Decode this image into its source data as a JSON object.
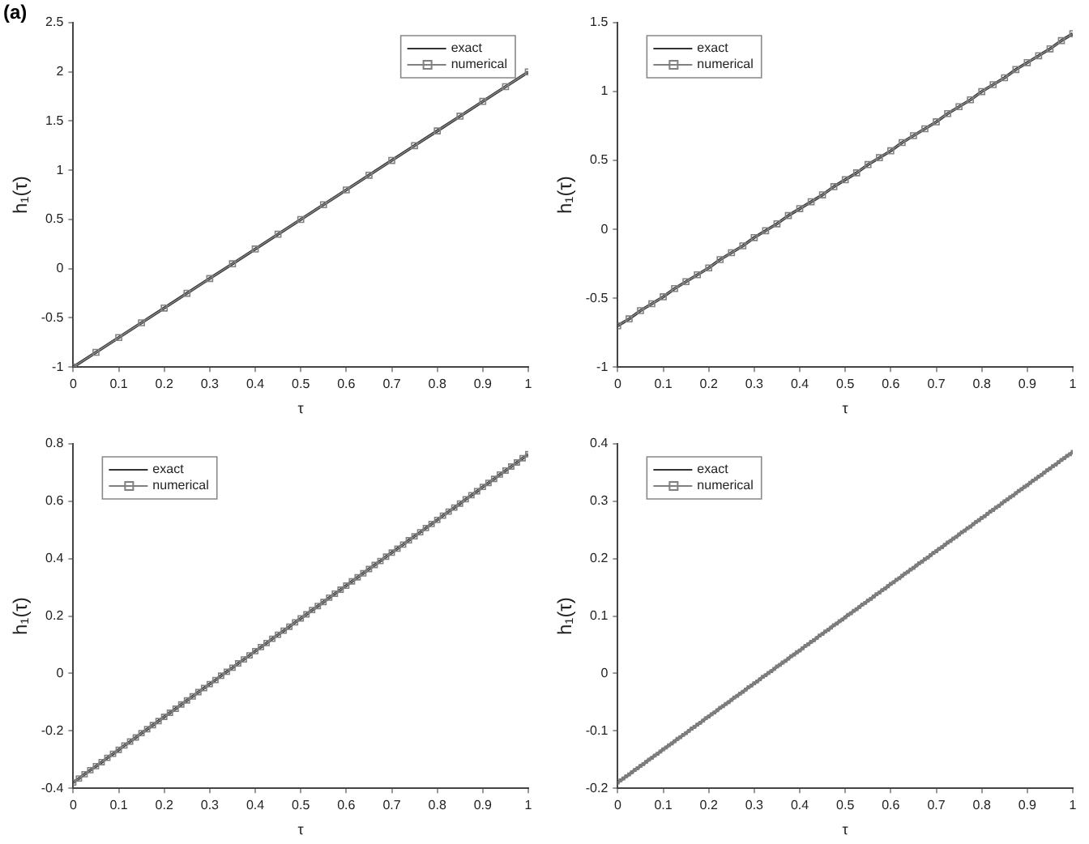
{
  "chart_data": [
    {
      "type": "line",
      "annotations": [
        "(a)"
      ],
      "xlabel": "τ",
      "ylabel": "h₁(τ)",
      "legend": "top right",
      "grid": false,
      "xlim": [
        0,
        1
      ],
      "xticks": [
        0,
        0.1,
        0.2,
        0.3,
        0.4,
        0.5,
        0.6,
        0.7,
        0.8,
        0.9,
        1
      ],
      "ylim": [
        -1,
        2.5
      ],
      "yticks": [
        -1,
        -0.5,
        0,
        0.5,
        1,
        1.5,
        2,
        2.5
      ],
      "x": [
        0,
        0.05,
        0.1,
        0.15,
        0.2,
        0.25,
        0.3,
        0.35,
        0.4,
        0.45,
        0.5,
        0.55,
        0.6,
        0.65,
        0.7,
        0.75,
        0.8,
        0.85,
        0.9,
        0.95,
        1
      ],
      "series": [
        {
          "name": "exact",
          "color": "#333333",
          "marker": "none",
          "values": [
            -1,
            -0.85,
            -0.7,
            -0.55,
            -0.4,
            -0.25,
            -0.1,
            0.05,
            0.2,
            0.35,
            0.5,
            0.65,
            0.8,
            0.95,
            1.1,
            1.25,
            1.4,
            1.55,
            1.7,
            1.85,
            2
          ]
        },
        {
          "name": "numerical",
          "color": "#808080",
          "marker": "square",
          "values": [
            -1,
            -0.85,
            -0.7,
            -0.55,
            -0.4,
            -0.25,
            -0.1,
            0.05,
            0.2,
            0.35,
            0.5,
            0.65,
            0.8,
            0.95,
            1.1,
            1.25,
            1.4,
            1.55,
            1.7,
            1.85,
            2
          ]
        }
      ]
    },
    {
      "type": "line",
      "xlabel": "τ",
      "ylabel": "h₁(τ)",
      "legend": "top left",
      "grid": false,
      "xlim": [
        0,
        1
      ],
      "xticks": [
        0,
        0.1,
        0.2,
        0.3,
        0.4,
        0.5,
        0.6,
        0.7,
        0.8,
        0.9,
        1
      ],
      "ylim": [
        -1,
        1.5
      ],
      "yticks": [
        -1,
        -0.5,
        0,
        0.5,
        1,
        1.5
      ],
      "x": [
        0,
        0.025,
        0.05,
        0.075,
        0.1,
        0.125,
        0.15,
        0.175,
        0.2,
        0.225,
        0.25,
        0.275,
        0.3,
        0.325,
        0.35,
        0.375,
        0.4,
        0.425,
        0.45,
        0.475,
        0.5,
        0.525,
        0.55,
        0.575,
        0.6,
        0.625,
        0.65,
        0.675,
        0.7,
        0.725,
        0.75,
        0.775,
        0.8,
        0.825,
        0.85,
        0.875,
        0.9,
        0.925,
        0.95,
        0.975,
        1
      ],
      "series": [
        {
          "name": "exact",
          "color": "#333333",
          "marker": "none",
          "values": [
            -0.7,
            -0.65,
            -0.59,
            -0.54,
            -0.49,
            -0.43,
            -0.38,
            -0.33,
            -0.28,
            -0.22,
            -0.17,
            -0.12,
            -0.06,
            -0.01,
            0.04,
            0.1,
            0.15,
            0.2,
            0.25,
            0.31,
            0.36,
            0.41,
            0.47,
            0.52,
            0.57,
            0.63,
            0.68,
            0.73,
            0.78,
            0.84,
            0.89,
            0.94,
            1,
            1.05,
            1.1,
            1.16,
            1.21,
            1.26,
            1.31,
            1.37,
            1.42
          ]
        },
        {
          "name": "numerical",
          "color": "#808080",
          "marker": "square",
          "values": [
            -0.7,
            -0.65,
            -0.59,
            -0.54,
            -0.49,
            -0.43,
            -0.38,
            -0.33,
            -0.28,
            -0.22,
            -0.17,
            -0.12,
            -0.06,
            -0.01,
            0.04,
            0.1,
            0.15,
            0.2,
            0.25,
            0.31,
            0.36,
            0.41,
            0.47,
            0.52,
            0.57,
            0.63,
            0.68,
            0.73,
            0.78,
            0.84,
            0.89,
            0.94,
            1,
            1.05,
            1.1,
            1.16,
            1.21,
            1.26,
            1.31,
            1.37,
            1.42
          ]
        }
      ]
    },
    {
      "type": "line",
      "xlabel": "τ",
      "ylabel": "h₁(τ)",
      "legend": "top left",
      "grid": false,
      "xlim": [
        0,
        1
      ],
      "xticks": [
        0,
        0.1,
        0.2,
        0.3,
        0.4,
        0.5,
        0.6,
        0.7,
        0.8,
        0.9,
        1
      ],
      "ylim": [
        -0.4,
        0.8
      ],
      "yticks": [
        -0.4,
        -0.2,
        0,
        0.2,
        0.4,
        0.6,
        0.8
      ],
      "x": [
        0,
        0.0125,
        0.025,
        0.0375,
        0.05,
        0.0625,
        0.075,
        0.0875,
        0.1,
        0.1125,
        0.125,
        0.1375,
        0.15,
        0.1625,
        0.175,
        0.1875,
        0.2,
        0.2125,
        0.225,
        0.2375,
        0.25,
        0.2625,
        0.275,
        0.2875,
        0.3,
        0.3125,
        0.325,
        0.3375,
        0.35,
        0.3625,
        0.375,
        0.3875,
        0.4,
        0.4125,
        0.425,
        0.4375,
        0.45,
        0.4625,
        0.475,
        0.4875,
        0.5,
        0.5125,
        0.525,
        0.5375,
        0.55,
        0.5625,
        0.575,
        0.5875,
        0.6,
        0.6125,
        0.625,
        0.6375,
        0.65,
        0.6625,
        0.675,
        0.6875,
        0.7,
        0.7125,
        0.725,
        0.7375,
        0.75,
        0.7625,
        0.775,
        0.7875,
        0.8,
        0.8125,
        0.825,
        0.8375,
        0.85,
        0.8625,
        0.875,
        0.8875,
        0.9,
        0.9125,
        0.925,
        0.9375,
        0.95,
        0.9625,
        0.975,
        0.9875,
        1
      ],
      "series": [
        {
          "name": "exact",
          "color": "#333333",
          "marker": "none",
          "values": [
            -0.38,
            -0.366,
            -0.351,
            -0.337,
            -0.323,
            -0.309,
            -0.294,
            -0.28,
            -0.266,
            -0.251,
            -0.237,
            -0.223,
            -0.208,
            -0.194,
            -0.18,
            -0.166,
            -0.151,
            -0.137,
            -0.123,
            -0.108,
            -0.094,
            -0.08,
            -0.065,
            -0.051,
            -0.037,
            -0.023,
            -0.008,
            0.006,
            0.02,
            0.035,
            0.049,
            0.063,
            0.078,
            0.092,
            0.106,
            0.121,
            0.135,
            0.149,
            0.163,
            0.178,
            0.192,
            0.206,
            0.221,
            0.235,
            0.249,
            0.264,
            0.278,
            0.292,
            0.306,
            0.321,
            0.335,
            0.349,
            0.364,
            0.378,
            0.392,
            0.407,
            0.421,
            0.435,
            0.449,
            0.464,
            0.478,
            0.492,
            0.507,
            0.521,
            0.535,
            0.55,
            0.564,
            0.578,
            0.592,
            0.607,
            0.621,
            0.635,
            0.65,
            0.664,
            0.678,
            0.693,
            0.707,
            0.721,
            0.735,
            0.75,
            0.764
          ]
        },
        {
          "name": "numerical",
          "color": "#808080",
          "marker": "square",
          "values": [
            -0.38,
            -0.366,
            -0.351,
            -0.337,
            -0.323,
            -0.309,
            -0.294,
            -0.28,
            -0.266,
            -0.251,
            -0.237,
            -0.223,
            -0.208,
            -0.194,
            -0.18,
            -0.166,
            -0.151,
            -0.137,
            -0.123,
            -0.108,
            -0.094,
            -0.08,
            -0.065,
            -0.051,
            -0.037,
            -0.023,
            -0.008,
            0.006,
            0.02,
            0.035,
            0.049,
            0.063,
            0.078,
            0.092,
            0.106,
            0.121,
            0.135,
            0.149,
            0.163,
            0.178,
            0.192,
            0.206,
            0.221,
            0.235,
            0.249,
            0.264,
            0.278,
            0.292,
            0.306,
            0.321,
            0.335,
            0.349,
            0.364,
            0.378,
            0.392,
            0.407,
            0.421,
            0.435,
            0.449,
            0.464,
            0.478,
            0.492,
            0.507,
            0.521,
            0.535,
            0.55,
            0.564,
            0.578,
            0.592,
            0.607,
            0.621,
            0.635,
            0.65,
            0.664,
            0.678,
            0.693,
            0.707,
            0.721,
            0.735,
            0.75,
            0.764
          ]
        }
      ]
    },
    {
      "type": "line",
      "xlabel": "τ",
      "ylabel": "h₁(τ)",
      "legend": "top left",
      "grid": false,
      "xlim": [
        0,
        1
      ],
      "xticks": [
        0,
        0.1,
        0.2,
        0.3,
        0.4,
        0.5,
        0.6,
        0.7,
        0.8,
        0.9,
        1
      ],
      "ylim": [
        -0.2,
        0.4
      ],
      "yticks": [
        -0.2,
        -0.1,
        0,
        0.1,
        0.2,
        0.3,
        0.4
      ],
      "x": [
        0,
        0.00625,
        0.0125,
        0.01875,
        0.025,
        0.03125,
        0.0375,
        0.04375,
        0.05,
        0.05625,
        0.0625,
        0.06875,
        0.075,
        0.08125,
        0.0875,
        0.09375,
        0.1,
        0.10625,
        0.1125,
        0.11875,
        0.125,
        0.13125,
        0.1375,
        0.14375,
        0.15,
        0.15625,
        0.1625,
        0.16875,
        0.175,
        0.18125,
        0.1875,
        0.19375,
        0.2,
        0.20625,
        0.2125,
        0.21875,
        0.225,
        0.23125,
        0.2375,
        0.24375,
        0.25,
        0.25625,
        0.2625,
        0.26875,
        0.275,
        0.28125,
        0.2875,
        0.29375,
        0.3,
        0.30625,
        0.3125,
        0.31875,
        0.325,
        0.33125,
        0.3375,
        0.34375,
        0.35,
        0.35625,
        0.3625,
        0.36875,
        0.375,
        0.38125,
        0.3875,
        0.39375,
        0.4,
        0.40625,
        0.4125,
        0.41875,
        0.425,
        0.43125,
        0.4375,
        0.44375,
        0.45,
        0.45625,
        0.4625,
        0.46875,
        0.475,
        0.48125,
        0.4875,
        0.49375,
        0.5,
        0.50625,
        0.5125,
        0.51875,
        0.525,
        0.53125,
        0.5375,
        0.54375,
        0.55,
        0.55625,
        0.5625,
        0.56875,
        0.575,
        0.58125,
        0.5875,
        0.59375,
        0.6,
        0.60625,
        0.6125,
        0.61875,
        0.625,
        0.63125,
        0.6375,
        0.64375,
        0.65,
        0.65625,
        0.6625,
        0.66875,
        0.675,
        0.68125,
        0.6875,
        0.69375,
        0.7,
        0.70625,
        0.7125,
        0.71875,
        0.725,
        0.73125,
        0.7375,
        0.74375,
        0.75,
        0.75625,
        0.7625,
        0.76875,
        0.775,
        0.78125,
        0.7875,
        0.79375,
        0.8,
        0.80625,
        0.8125,
        0.81875,
        0.825,
        0.83125,
        0.8375,
        0.84375,
        0.85,
        0.85625,
        0.8625,
        0.86875,
        0.875,
        0.88125,
        0.8875,
        0.89375,
        0.9,
        0.90625,
        0.9125,
        0.91875,
        0.925,
        0.93125,
        0.9375,
        0.94375,
        0.95,
        0.95625,
        0.9625,
        0.96875,
        0.975,
        0.98125,
        0.9875,
        0.99375,
        1
      ],
      "series": [
        {
          "name": "exact",
          "color": "#333333",
          "marker": "none",
          "values": [
            -0.19,
            -0.186,
            -0.183,
            -0.179,
            -0.176,
            -0.172,
            -0.168,
            -0.165,
            -0.161,
            -0.158,
            -0.154,
            -0.15,
            -0.147,
            -0.143,
            -0.14,
            -0.136,
            -0.132,
            -0.129,
            -0.125,
            -0.122,
            -0.118,
            -0.114,
            -0.111,
            -0.107,
            -0.104,
            -0.1,
            -0.096,
            -0.093,
            -0.089,
            -0.086,
            -0.082,
            -0.078,
            -0.075,
            -0.071,
            -0.068,
            -0.064,
            -0.06,
            -0.057,
            -0.053,
            -0.05,
            -0.046,
            -0.042,
            -0.039,
            -0.035,
            -0.032,
            -0.028,
            -0.024,
            -0.021,
            -0.017,
            -0.014,
            -0.01,
            -0.006,
            -0.003,
            0.001,
            0.004,
            0.008,
            0.012,
            0.015,
            0.019,
            0.022,
            0.026,
            0.03,
            0.033,
            0.037,
            0.04,
            0.044,
            0.048,
            0.051,
            0.055,
            0.058,
            0.062,
            0.066,
            0.069,
            0.073,
            0.076,
            0.08,
            0.084,
            0.087,
            0.091,
            0.094,
            0.098,
            0.102,
            0.105,
            0.109,
            0.112,
            0.116,
            0.12,
            0.123,
            0.127,
            0.13,
            0.134,
            0.138,
            0.141,
            0.145,
            0.148,
            0.152,
            0.156,
            0.159,
            0.163,
            0.166,
            0.17,
            0.174,
            0.177,
            0.181,
            0.184,
            0.188,
            0.192,
            0.195,
            0.199,
            0.202,
            0.206,
            0.21,
            0.213,
            0.217,
            0.22,
            0.224,
            0.228,
            0.231,
            0.235,
            0.238,
            0.242,
            0.246,
            0.249,
            0.253,
            0.256,
            0.26,
            0.264,
            0.267,
            0.271,
            0.274,
            0.278,
            0.282,
            0.285,
            0.289,
            0.292,
            0.296,
            0.3,
            0.303,
            0.307,
            0.31,
            0.314,
            0.318,
            0.321,
            0.325,
            0.328,
            0.332,
            0.336,
            0.339,
            0.343,
            0.346,
            0.35,
            0.354,
            0.357,
            0.361,
            0.364,
            0.368,
            0.372,
            0.375,
            0.379,
            0.382,
            0.386
          ]
        },
        {
          "name": "numerical",
          "color": "#808080",
          "marker": "square",
          "values": [
            -0.19,
            -0.186,
            -0.183,
            -0.179,
            -0.176,
            -0.172,
            -0.168,
            -0.165,
            -0.161,
            -0.158,
            -0.154,
            -0.15,
            -0.147,
            -0.143,
            -0.14,
            -0.136,
            -0.132,
            -0.129,
            -0.125,
            -0.122,
            -0.118,
            -0.114,
            -0.111,
            -0.107,
            -0.104,
            -0.1,
            -0.096,
            -0.093,
            -0.089,
            -0.086,
            -0.082,
            -0.078,
            -0.075,
            -0.071,
            -0.068,
            -0.064,
            -0.06,
            -0.057,
            -0.053,
            -0.05,
            -0.046,
            -0.042,
            -0.039,
            -0.035,
            -0.032,
            -0.028,
            -0.024,
            -0.021,
            -0.017,
            -0.014,
            -0.01,
            -0.006,
            -0.003,
            0.001,
            0.004,
            0.008,
            0.012,
            0.015,
            0.019,
            0.022,
            0.026,
            0.03,
            0.033,
            0.037,
            0.04,
            0.044,
            0.048,
            0.051,
            0.055,
            0.058,
            0.062,
            0.066,
            0.069,
            0.073,
            0.076,
            0.08,
            0.084,
            0.087,
            0.091,
            0.094,
            0.098,
            0.102,
            0.105,
            0.109,
            0.112,
            0.116,
            0.12,
            0.123,
            0.127,
            0.13,
            0.134,
            0.138,
            0.141,
            0.145,
            0.148,
            0.152,
            0.156,
            0.159,
            0.163,
            0.166,
            0.17,
            0.174,
            0.177,
            0.181,
            0.184,
            0.188,
            0.192,
            0.195,
            0.199,
            0.202,
            0.206,
            0.21,
            0.213,
            0.217,
            0.22,
            0.224,
            0.228,
            0.231,
            0.235,
            0.238,
            0.242,
            0.246,
            0.249,
            0.253,
            0.256,
            0.26,
            0.264,
            0.267,
            0.271,
            0.274,
            0.278,
            0.282,
            0.285,
            0.289,
            0.292,
            0.296,
            0.3,
            0.303,
            0.307,
            0.31,
            0.314,
            0.318,
            0.321,
            0.325,
            0.328,
            0.332,
            0.336,
            0.339,
            0.343,
            0.346,
            0.35,
            0.354,
            0.357,
            0.361,
            0.364,
            0.368,
            0.372,
            0.375,
            0.379,
            0.382,
            0.386
          ]
        }
      ]
    }
  ]
}
